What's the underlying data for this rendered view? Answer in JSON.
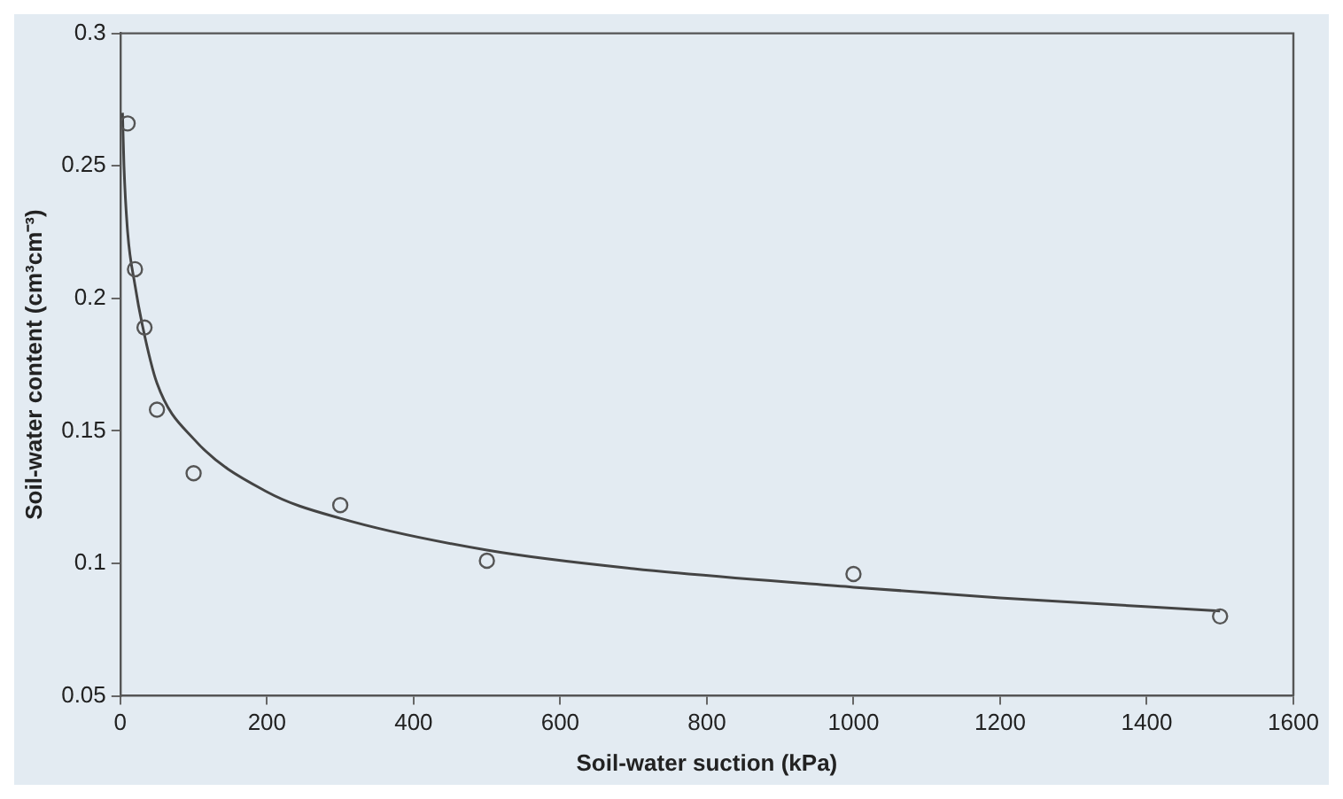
{
  "chart_data": {
    "type": "scatter",
    "xlabel": "Soil-water suction (kPa)",
    "ylabel": "Soil-water content (cm³cm⁻³)",
    "xlim": [
      0,
      1600
    ],
    "ylim": [
      0.05,
      0.3
    ],
    "xticks": [
      0,
      200,
      400,
      600,
      800,
      1000,
      1200,
      1400,
      1600
    ],
    "yticks": [
      0.05,
      0.1,
      0.15,
      0.2,
      0.25,
      0.3
    ],
    "grid": false,
    "legend": false,
    "series": [
      {
        "type": "scatter",
        "marker": "circle",
        "color": "#555555",
        "x": [
          10,
          20,
          33,
          50,
          100,
          300,
          500,
          1000,
          1500
        ],
        "values": [
          0.266,
          0.211,
          0.189,
          0.158,
          0.134,
          0.122,
          0.101,
          0.096,
          0.08
        ]
      },
      {
        "type": "line",
        "marker": "none",
        "line_style": "solid",
        "color": "#444444",
        "x": [
          3,
          5,
          10,
          20,
          30,
          50,
          100,
          200,
          300,
          500,
          700,
          1000,
          1200,
          1500
        ],
        "values": [
          0.27,
          0.25,
          0.225,
          0.205,
          0.19,
          0.168,
          0.147,
          0.127,
          0.117,
          0.105,
          0.098,
          0.091,
          0.087,
          0.082
        ]
      }
    ]
  }
}
